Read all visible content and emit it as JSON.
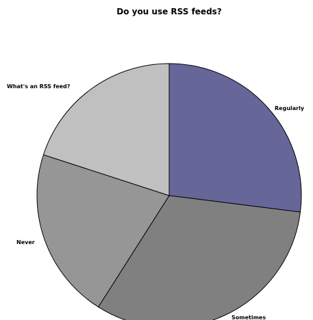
{
  "chart_data": {
    "type": "pie",
    "title": "Do you use RSS feeds?",
    "slices": [
      {
        "label": "Regularly",
        "value": 27,
        "color": "#666699"
      },
      {
        "label": "Sometimes",
        "value": 32,
        "color": "#808080"
      },
      {
        "label": "Never",
        "value": 21,
        "color": "#969696"
      },
      {
        "label": "What's an RSS feed?",
        "value": 20,
        "color": "#c0c0c0"
      }
    ],
    "legend": "none"
  }
}
